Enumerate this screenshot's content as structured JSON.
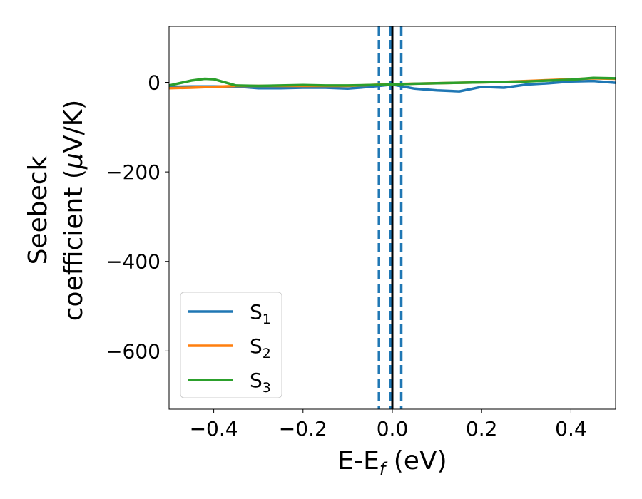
{
  "chart_data": {
    "type": "line",
    "title": "",
    "xlabel": "E-E",
    "xlabel_sub": "f",
    "xlabel_unit": " (eV)",
    "ylabel_line1": "Seebeck",
    "ylabel_line2": "coefficient  (",
    "ylabel_mu": "μ",
    "ylabel_unit": "V/K)",
    "xlim": [
      -0.5,
      0.5
    ],
    "ylim": [
      -730,
      125
    ],
    "xticks": [
      -0.4,
      -0.2,
      0.0,
      0.2,
      0.4
    ],
    "xtick_labels": [
      "−0.4",
      "−0.2",
      "0.0",
      "0.2",
      "0.4"
    ],
    "yticks": [
      0,
      -200,
      -400,
      -600
    ],
    "ytick_labels": [
      "0",
      "−200",
      "−400",
      "−600"
    ],
    "grid": false,
    "legend_position": "lower-left",
    "vlines": [
      {
        "x": 0.0,
        "style": "solid",
        "color": "#000000"
      },
      {
        "x": -0.03,
        "style": "dashed",
        "color": "#1f77b4"
      },
      {
        "x": -0.005,
        "style": "dashed",
        "color": "#1f77b4"
      },
      {
        "x": 0.02,
        "style": "dashed",
        "color": "#1f77b4"
      }
    ],
    "series": [
      {
        "name": "S",
        "sub": "1",
        "color": "#1f77b4",
        "x": [
          -0.5,
          -0.45,
          -0.4,
          -0.35,
          -0.3,
          -0.25,
          -0.2,
          -0.15,
          -0.1,
          -0.05,
          0.0,
          0.05,
          0.1,
          0.15,
          0.2,
          0.25,
          0.3,
          0.35,
          0.4,
          0.45,
          0.5
        ],
        "y": [
          -10,
          -9,
          -9,
          -9,
          -13,
          -13,
          -12,
          -12,
          -14,
          -10,
          -5,
          -14,
          -18,
          -20,
          -10,
          -12,
          -5,
          -2,
          2,
          3,
          -1
        ]
      },
      {
        "name": "S",
        "sub": "2",
        "color": "#ff7f0e",
        "x": [
          -0.5,
          -0.45,
          -0.4,
          -0.35,
          -0.3,
          -0.25,
          -0.2,
          -0.15,
          -0.1,
          -0.05,
          0.0,
          0.05,
          0.1,
          0.15,
          0.2,
          0.25,
          0.3,
          0.35,
          0.4,
          0.45,
          0.5
        ],
        "y": [
          -13,
          -12,
          -10,
          -8,
          -8,
          -8,
          -8,
          -8,
          -8,
          -6,
          -4,
          -3,
          -2,
          -1,
          0,
          1,
          3,
          5,
          7,
          9,
          8
        ]
      },
      {
        "name": "S",
        "sub": "3",
        "color": "#2ca02c",
        "x": [
          -0.5,
          -0.45,
          -0.42,
          -0.4,
          -0.35,
          -0.3,
          -0.25,
          -0.2,
          -0.15,
          -0.1,
          -0.05,
          0.0,
          0.05,
          0.1,
          0.15,
          0.2,
          0.25,
          0.3,
          0.35,
          0.4,
          0.45,
          0.5
        ],
        "y": [
          -7,
          4,
          8,
          7,
          -7,
          -8,
          -7,
          -6,
          -7,
          -7,
          -6,
          -5,
          -3,
          -2,
          -1,
          0,
          1,
          2,
          4,
          6,
          10,
          9
        ]
      }
    ]
  }
}
